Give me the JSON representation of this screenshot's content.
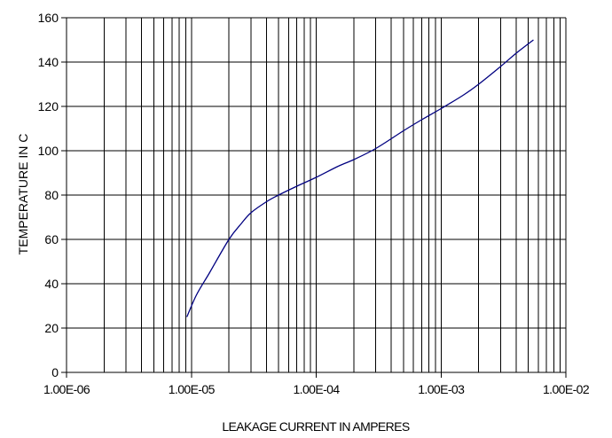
{
  "chart_data": {
    "type": "line",
    "title": "",
    "xlabel": "LEAKAGE CURRENT IN AMPERES",
    "ylabel": "TEMPERATURE IN C",
    "x_scale": "log",
    "xlim": [
      1e-06,
      0.01
    ],
    "ylim": [
      0,
      160
    ],
    "x_tick_labels": [
      "1.00E-06",
      "1.00E-05",
      "1.00E-04",
      "1.00E-03",
      "1.00E-02"
    ],
    "y_tick_labels": [
      "0",
      "20",
      "40",
      "60",
      "80",
      "100",
      "120",
      "140",
      "160"
    ],
    "grid": true,
    "legend": "none",
    "series": [
      {
        "color": "#000080",
        "x": [
          9.2e-06,
          1.1e-05,
          1.4e-05,
          2e-05,
          2.5e-05,
          3e-05,
          4e-05,
          5e-05,
          7e-05,
          0.0001,
          0.00015,
          0.0002,
          0.0003,
          0.0005,
          0.0007,
          0.001,
          0.0015,
          0.002,
          0.003,
          0.004,
          0.0055
        ],
        "y": [
          25,
          35,
          45,
          60,
          67,
          72,
          77,
          80,
          84,
          88,
          93,
          96,
          101,
          109,
          114,
          119,
          125,
          130,
          138,
          144,
          150
        ]
      }
    ]
  }
}
